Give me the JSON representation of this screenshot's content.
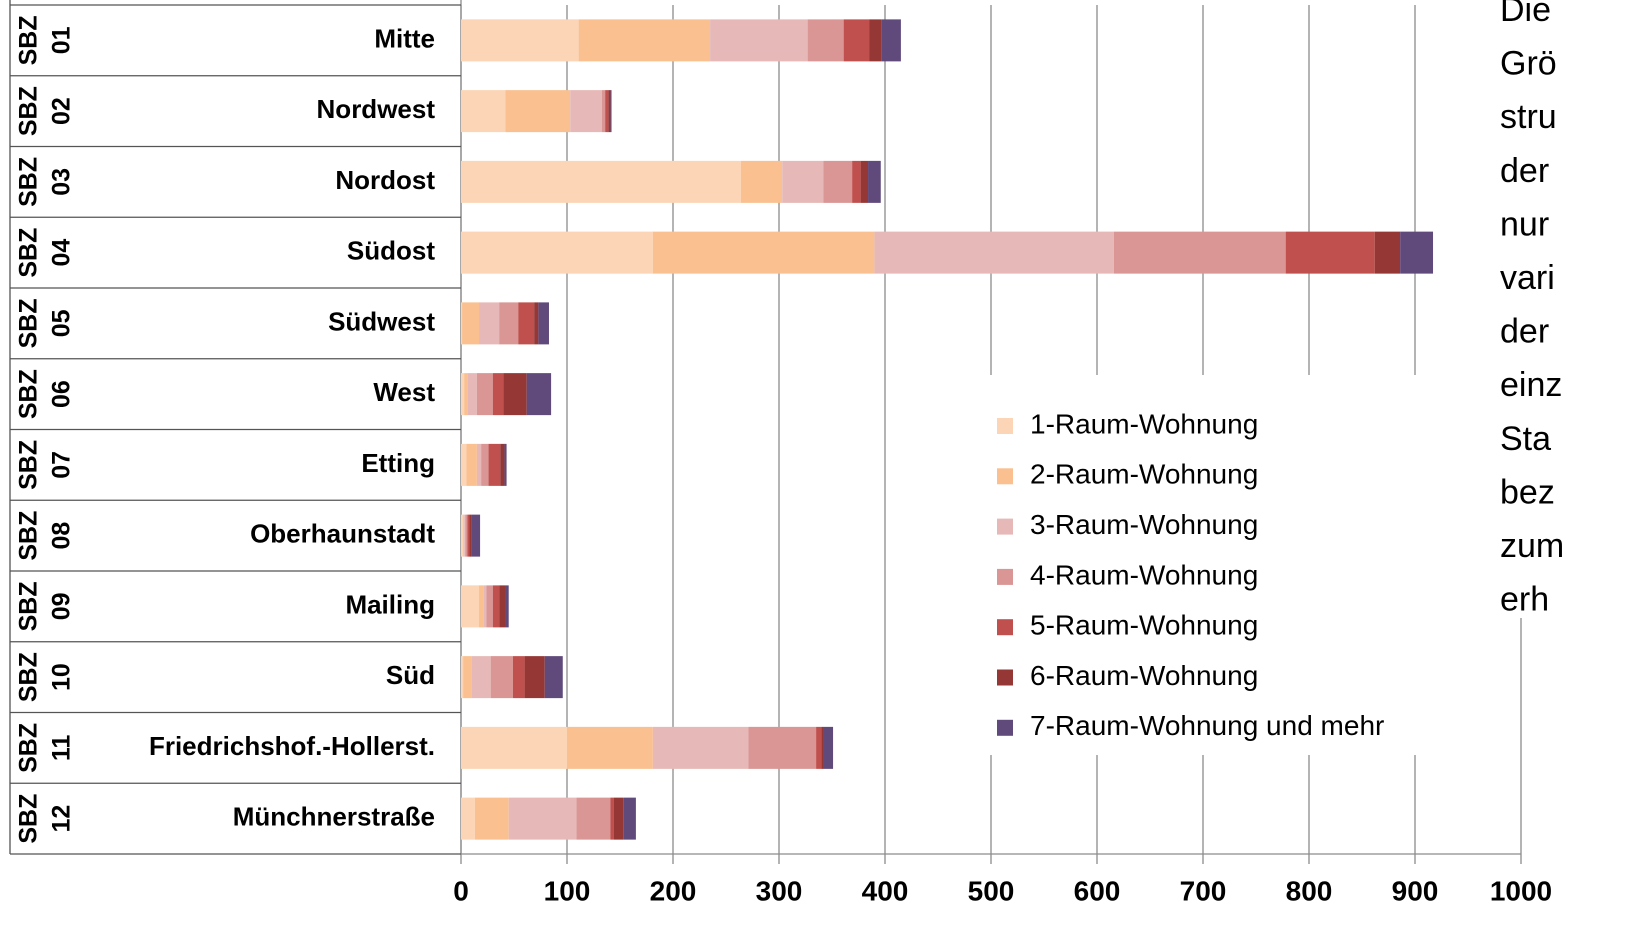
{
  "chart_data": {
    "type": "stacked_bar_horizontal",
    "group_labels": [
      [
        "SBZ",
        "01"
      ],
      [
        "SBZ",
        "02"
      ],
      [
        "SBZ",
        "03"
      ],
      [
        "SBZ",
        "04"
      ],
      [
        "SBZ",
        "05"
      ],
      [
        "SBZ",
        "06"
      ],
      [
        "SBZ",
        "07"
      ],
      [
        "SBZ",
        "08"
      ],
      [
        "SBZ",
        "09"
      ],
      [
        "SBZ",
        "10"
      ],
      [
        "SBZ",
        "11"
      ],
      [
        "SBZ",
        "12"
      ]
    ],
    "categories": [
      "Mitte",
      "Nordwest",
      "Nordost",
      "Südost",
      "Südwest",
      "West",
      "Etting",
      "Oberhaunstadt",
      "Mailing",
      "Süd",
      "Friedrichshof.-Hollerst.",
      "Münchnerstraße"
    ],
    "series": [
      {
        "name": "1-Raum-Wohnung",
        "color": "#fbd5b5",
        "values": [
          111,
          42,
          264,
          181,
          1,
          3,
          5,
          2,
          17,
          2,
          100,
          13
        ]
      },
      {
        "name": "2-Raum-Wohnung",
        "color": "#fac090",
        "values": [
          124,
          61,
          39,
          209,
          16,
          3,
          10,
          1,
          4,
          8,
          81,
          32
        ]
      },
      {
        "name": "3-Raum-Wohnung",
        "color": "#e6b9b8",
        "values": [
          92,
          30,
          39,
          226,
          19,
          9,
          4,
          1,
          3,
          18,
          90,
          64
        ]
      },
      {
        "name": "4-Raum-Wohnung",
        "color": "#d99694",
        "values": [
          34,
          3,
          27,
          162,
          18,
          15,
          7,
          2,
          6,
          21,
          64,
          32
        ]
      },
      {
        "name": "5-Raum-Wohnung",
        "color": "#c0504d",
        "values": [
          24,
          3,
          8,
          84,
          15,
          10,
          11,
          2,
          6,
          11,
          5,
          3
        ]
      },
      {
        "name": "6-Raum-Wohnung",
        "color": "#953735",
        "values": [
          12,
          2,
          7,
          24,
          4,
          22,
          4,
          2,
          6,
          19,
          2,
          9
        ]
      },
      {
        "name": "7-Raum-Wohnung und mehr",
        "color": "#604a7b",
        "values": [
          18,
          1,
          12,
          31,
          10,
          23,
          2,
          8,
          3,
          17,
          9,
          12
        ]
      }
    ],
    "xlim": [
      0,
      1000
    ],
    "xticks": [
      0,
      100,
      200,
      300,
      400,
      500,
      600,
      700,
      800,
      900,
      1000
    ],
    "grid": true,
    "side_text": [
      "Die",
      "Grö",
      "stru",
      "der",
      "nur",
      "vari",
      "der",
      "einz",
      "Sta",
      "bez",
      "zum",
      "erh"
    ]
  }
}
